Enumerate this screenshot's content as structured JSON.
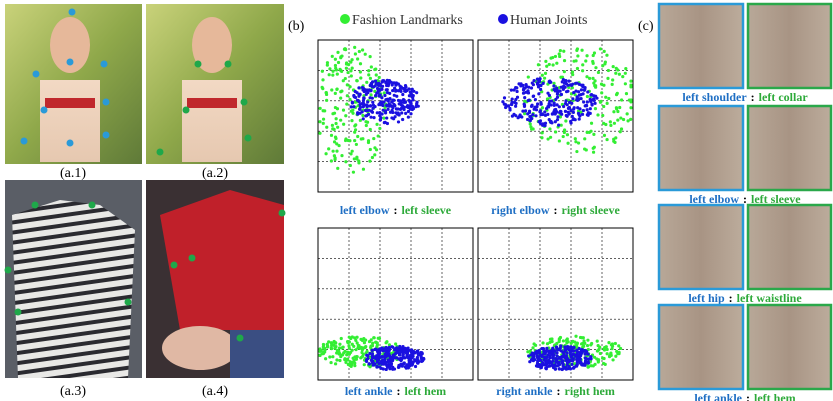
{
  "figure_a": {
    "captions": [
      "(a.1)",
      "(a.2)",
      "(a.3)",
      "(a.4)"
    ]
  },
  "figure_b": {
    "label": "(b)",
    "legend": [
      {
        "name": "Fashion Landmarks",
        "color": "#33ee33"
      },
      {
        "name": "Human Joints",
        "color": "#1a10e0"
      }
    ],
    "plots": [
      {
        "joint": "left elbow",
        "separator": ":",
        "landmark": "left sleeve"
      },
      {
        "joint": "right elbow",
        "separator": ":",
        "landmark": "right sleeve"
      },
      {
        "joint": "left ankle",
        "separator": ":",
        "landmark": "left hem"
      },
      {
        "joint": "right ankle",
        "separator": ":",
        "landmark": "right hem"
      }
    ]
  },
  "figure_c": {
    "label": "(c)",
    "pairs": [
      {
        "joint": "left shoulder",
        "separator": ":",
        "landmark": "left collar"
      },
      {
        "joint": "left elbow",
        "separator": ":",
        "landmark": "left sleeve"
      },
      {
        "joint": "left hip",
        "separator": ":",
        "landmark": "left waistline"
      },
      {
        "joint": "left ankle",
        "separator": ":",
        "landmark": "left hem"
      }
    ]
  }
}
